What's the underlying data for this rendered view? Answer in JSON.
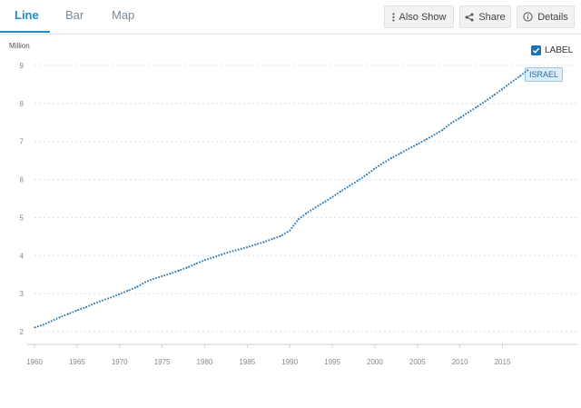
{
  "tabs": [
    {
      "label": "Line",
      "active": true
    },
    {
      "label": "Bar",
      "active": false
    },
    {
      "label": "Map",
      "active": false
    }
  ],
  "toolbar": {
    "also_show_label": "Also Show",
    "share_label": "Share",
    "details_label": "Details"
  },
  "legend": {
    "label_toggle": "LABEL",
    "checked": true
  },
  "chart_data": {
    "type": "line",
    "ylabel": "Million",
    "xlim": [
      1960,
      2019
    ],
    "ylim": [
      2,
      9
    ],
    "x_ticks": [
      1960,
      1965,
      1970,
      1975,
      1980,
      1985,
      1990,
      1995,
      2000,
      2005,
      2010,
      2015
    ],
    "y_ticks": [
      2,
      3,
      4,
      5,
      6,
      7,
      8,
      9
    ],
    "grid": true,
    "line_style": "dotted",
    "series": [
      {
        "name": "ISRAEL",
        "color": "#2a78b5",
        "x": [
          1960,
          1961,
          1962,
          1963,
          1964,
          1965,
          1966,
          1967,
          1968,
          1969,
          1970,
          1971,
          1972,
          1973,
          1974,
          1975,
          1976,
          1977,
          1978,
          1979,
          1980,
          1981,
          1982,
          1983,
          1984,
          1985,
          1986,
          1987,
          1988,
          1989,
          1990,
          1991,
          1992,
          1993,
          1994,
          1995,
          1996,
          1997,
          1998,
          1999,
          2000,
          2001,
          2002,
          2003,
          2004,
          2005,
          2006,
          2007,
          2008,
          2009,
          2010,
          2011,
          2012,
          2013,
          2014,
          2015,
          2016,
          2017,
          2018
        ],
        "values": [
          2.11,
          2.18,
          2.28,
          2.38,
          2.47,
          2.56,
          2.64,
          2.74,
          2.82,
          2.9,
          2.99,
          3.08,
          3.17,
          3.3,
          3.39,
          3.46,
          3.53,
          3.61,
          3.69,
          3.79,
          3.88,
          3.95,
          4.03,
          4.1,
          4.16,
          4.22,
          4.29,
          4.36,
          4.44,
          4.52,
          4.66,
          4.95,
          5.12,
          5.26,
          5.4,
          5.54,
          5.69,
          5.83,
          5.97,
          6.12,
          6.29,
          6.44,
          6.57,
          6.69,
          6.81,
          6.93,
          7.05,
          7.18,
          7.31,
          7.49,
          7.62,
          7.77,
          7.91,
          8.06,
          8.22,
          8.38,
          8.55,
          8.71,
          8.88
        ]
      }
    ]
  }
}
